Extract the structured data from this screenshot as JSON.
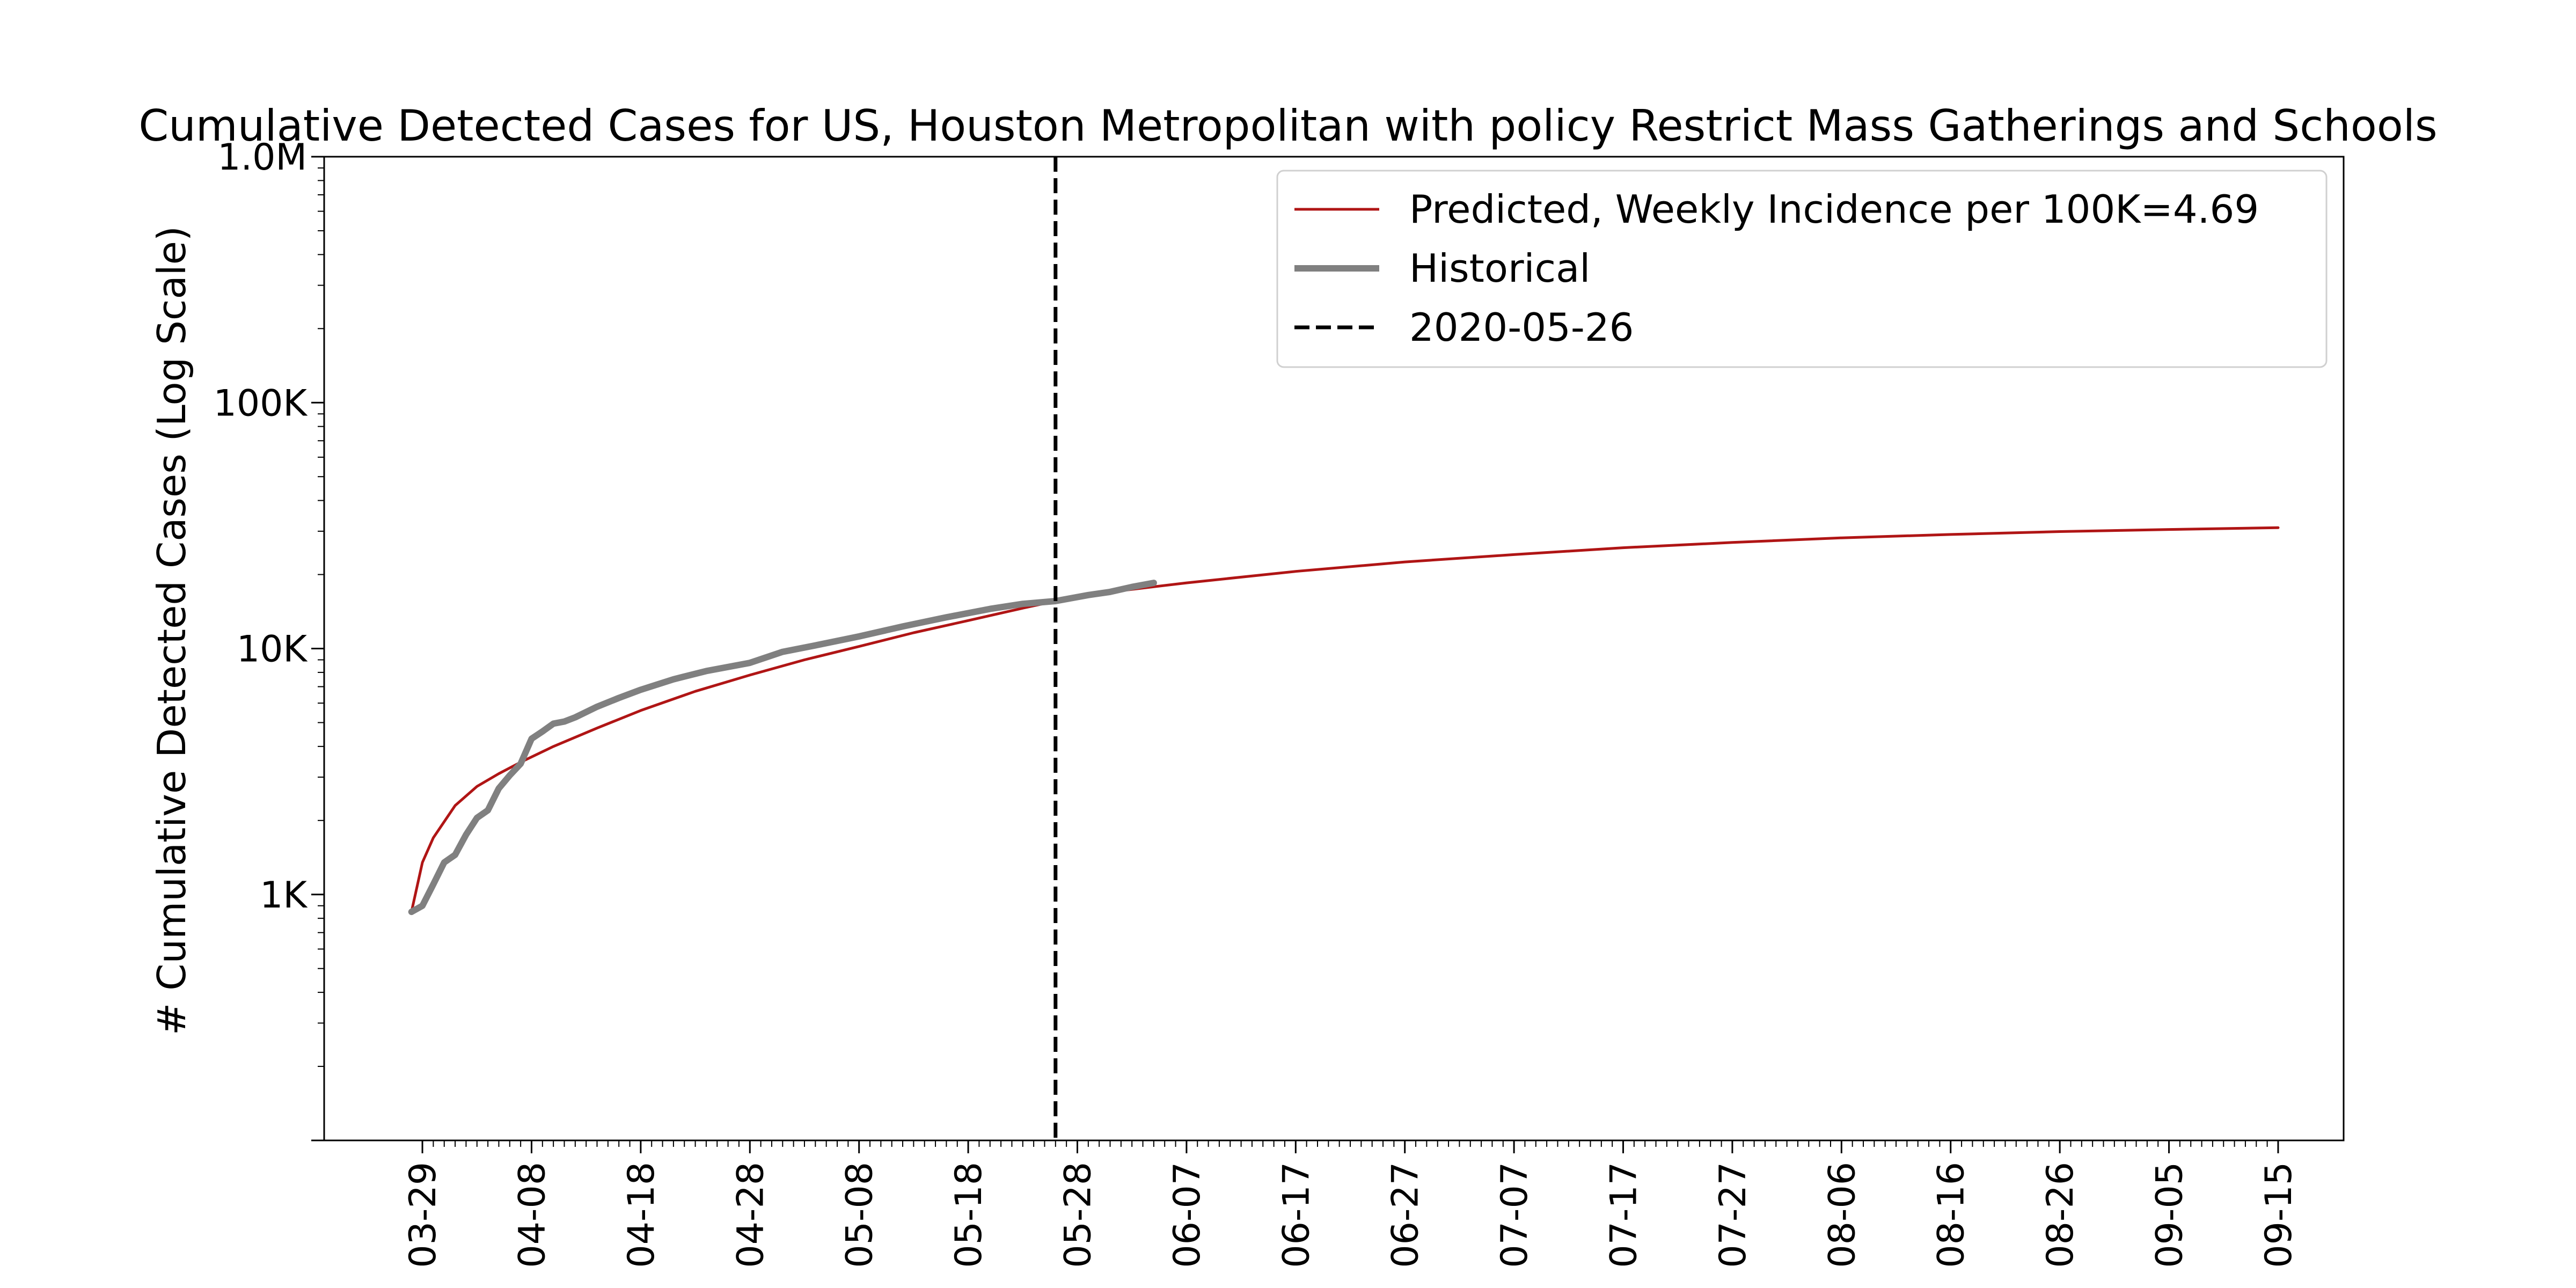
{
  "chart_data": {
    "type": "line",
    "title": "Cumulative Detected Cases for US, Houston Metropolitan with policy Restrict Mass Gatherings and Schools",
    "xlabel": "",
    "ylabel": "# Cumulative Detected Cases (Log Scale)",
    "yscale": "log",
    "ylim": [
      100,
      1000000
    ],
    "xlim": [
      "2020-03-20",
      "2020-09-21"
    ],
    "grid": false,
    "legend_position": "top-right",
    "y_ticks": [
      {
        "value": 1000,
        "label": "1K"
      },
      {
        "value": 10000,
        "label": "10K"
      },
      {
        "value": 100000,
        "label": "100K"
      },
      {
        "value": 1000000,
        "label": "1.0M"
      }
    ],
    "x_tick_labels": [
      "03-29",
      "04-08",
      "04-18",
      "04-28",
      "05-08",
      "05-18",
      "05-28",
      "06-07",
      "06-17",
      "06-27",
      "07-07",
      "07-17",
      "07-27",
      "08-06",
      "08-16",
      "08-26",
      "09-05",
      "09-15"
    ],
    "x_tick_dates": [
      "2020-03-29",
      "2020-04-08",
      "2020-04-18",
      "2020-04-28",
      "2020-05-08",
      "2020-05-18",
      "2020-05-28",
      "2020-06-07",
      "2020-06-17",
      "2020-06-27",
      "2020-07-07",
      "2020-07-17",
      "2020-07-27",
      "2020-08-06",
      "2020-08-16",
      "2020-08-26",
      "2020-09-05",
      "2020-09-15"
    ],
    "reference_line": {
      "date": "2020-05-26",
      "label": "2020-05-26",
      "color": "#000000",
      "style": "dashed"
    },
    "series": [
      {
        "name": "Predicted, Weekly Incidence per 100K=4.69",
        "color": "#b01515",
        "x": [
          "2020-03-28",
          "2020-03-29",
          "2020-03-30",
          "2020-04-01",
          "2020-04-03",
          "2020-04-05",
          "2020-04-07",
          "2020-04-10",
          "2020-04-14",
          "2020-04-18",
          "2020-04-23",
          "2020-04-28",
          "2020-05-03",
          "2020-05-08",
          "2020-05-13",
          "2020-05-18",
          "2020-05-23",
          "2020-05-26",
          "2020-06-01",
          "2020-06-07",
          "2020-06-17",
          "2020-06-27",
          "2020-07-07",
          "2020-07-17",
          "2020-07-27",
          "2020-08-06",
          "2020-08-16",
          "2020-08-26",
          "2020-09-05",
          "2020-09-15"
        ],
        "y": [
          850,
          1350,
          1700,
          2300,
          2750,
          3100,
          3450,
          4000,
          4750,
          5600,
          6700,
          7800,
          9000,
          10200,
          11600,
          13000,
          14600,
          15600,
          17200,
          18500,
          20600,
          22500,
          24100,
          25700,
          27000,
          28200,
          29100,
          29900,
          30500,
          31000
        ]
      },
      {
        "name": "Historical",
        "color": "#808080",
        "x": [
          "2020-03-28",
          "2020-03-29",
          "2020-03-30",
          "2020-03-31",
          "2020-04-01",
          "2020-04-02",
          "2020-04-03",
          "2020-04-04",
          "2020-04-05",
          "2020-04-06",
          "2020-04-07",
          "2020-04-08",
          "2020-04-09",
          "2020-04-10",
          "2020-04-11",
          "2020-04-12",
          "2020-04-14",
          "2020-04-16",
          "2020-04-18",
          "2020-04-21",
          "2020-04-24",
          "2020-04-28",
          "2020-05-01",
          "2020-05-04",
          "2020-05-08",
          "2020-05-12",
          "2020-05-16",
          "2020-05-20",
          "2020-05-23",
          "2020-05-26",
          "2020-05-29",
          "2020-05-31",
          "2020-06-02",
          "2020-06-04"
        ],
        "y": [
          850,
          900,
          1100,
          1350,
          1450,
          1750,
          2050,
          2200,
          2700,
          3050,
          3400,
          4300,
          4600,
          4950,
          5050,
          5250,
          5800,
          6300,
          6800,
          7500,
          8100,
          8750,
          9700,
          10300,
          11200,
          12300,
          13400,
          14500,
          15200,
          15600,
          16500,
          17000,
          17800,
          18500
        ]
      }
    ]
  }
}
